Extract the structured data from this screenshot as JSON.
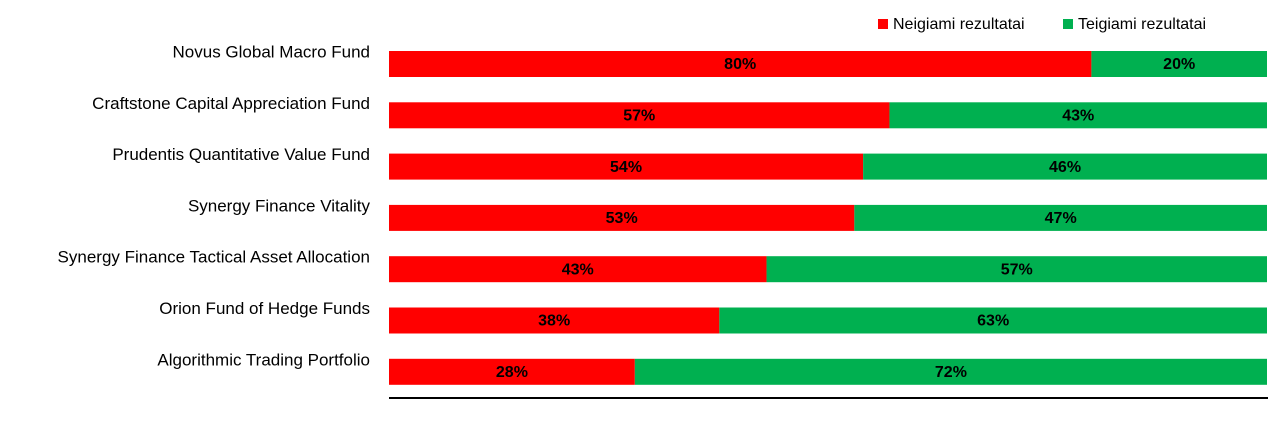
{
  "chart_data": {
    "type": "bar",
    "orientation": "horizontal",
    "stacked": true,
    "legend": "top-right",
    "categories": [
      "Novus Global Macro Fund",
      "Craftstone Capital Appreciation Fund",
      "Prudentis Quantitative Value Fund",
      "Synergy Finance Vitality",
      "Synergy Finance Tactical Asset Allocation",
      "Orion Fund of Hedge Funds",
      "Algorithmic Trading Portfolio"
    ],
    "series": [
      {
        "name": "Neigiami rezultatai",
        "color": "#ff0000",
        "values": [
          80,
          57,
          54,
          53,
          43,
          38,
          28
        ],
        "value_labels": [
          "80%",
          "57%",
          "54%",
          "53%",
          "43%",
          "38%",
          "28%"
        ]
      },
      {
        "name": "Teigiami rezultatai",
        "color": "#00b050",
        "values": [
          20,
          43,
          46,
          47,
          57,
          63,
          72
        ],
        "value_labels": [
          "20%",
          "43%",
          "46%",
          "47%",
          "57%",
          "63%",
          "72%"
        ]
      }
    ]
  }
}
